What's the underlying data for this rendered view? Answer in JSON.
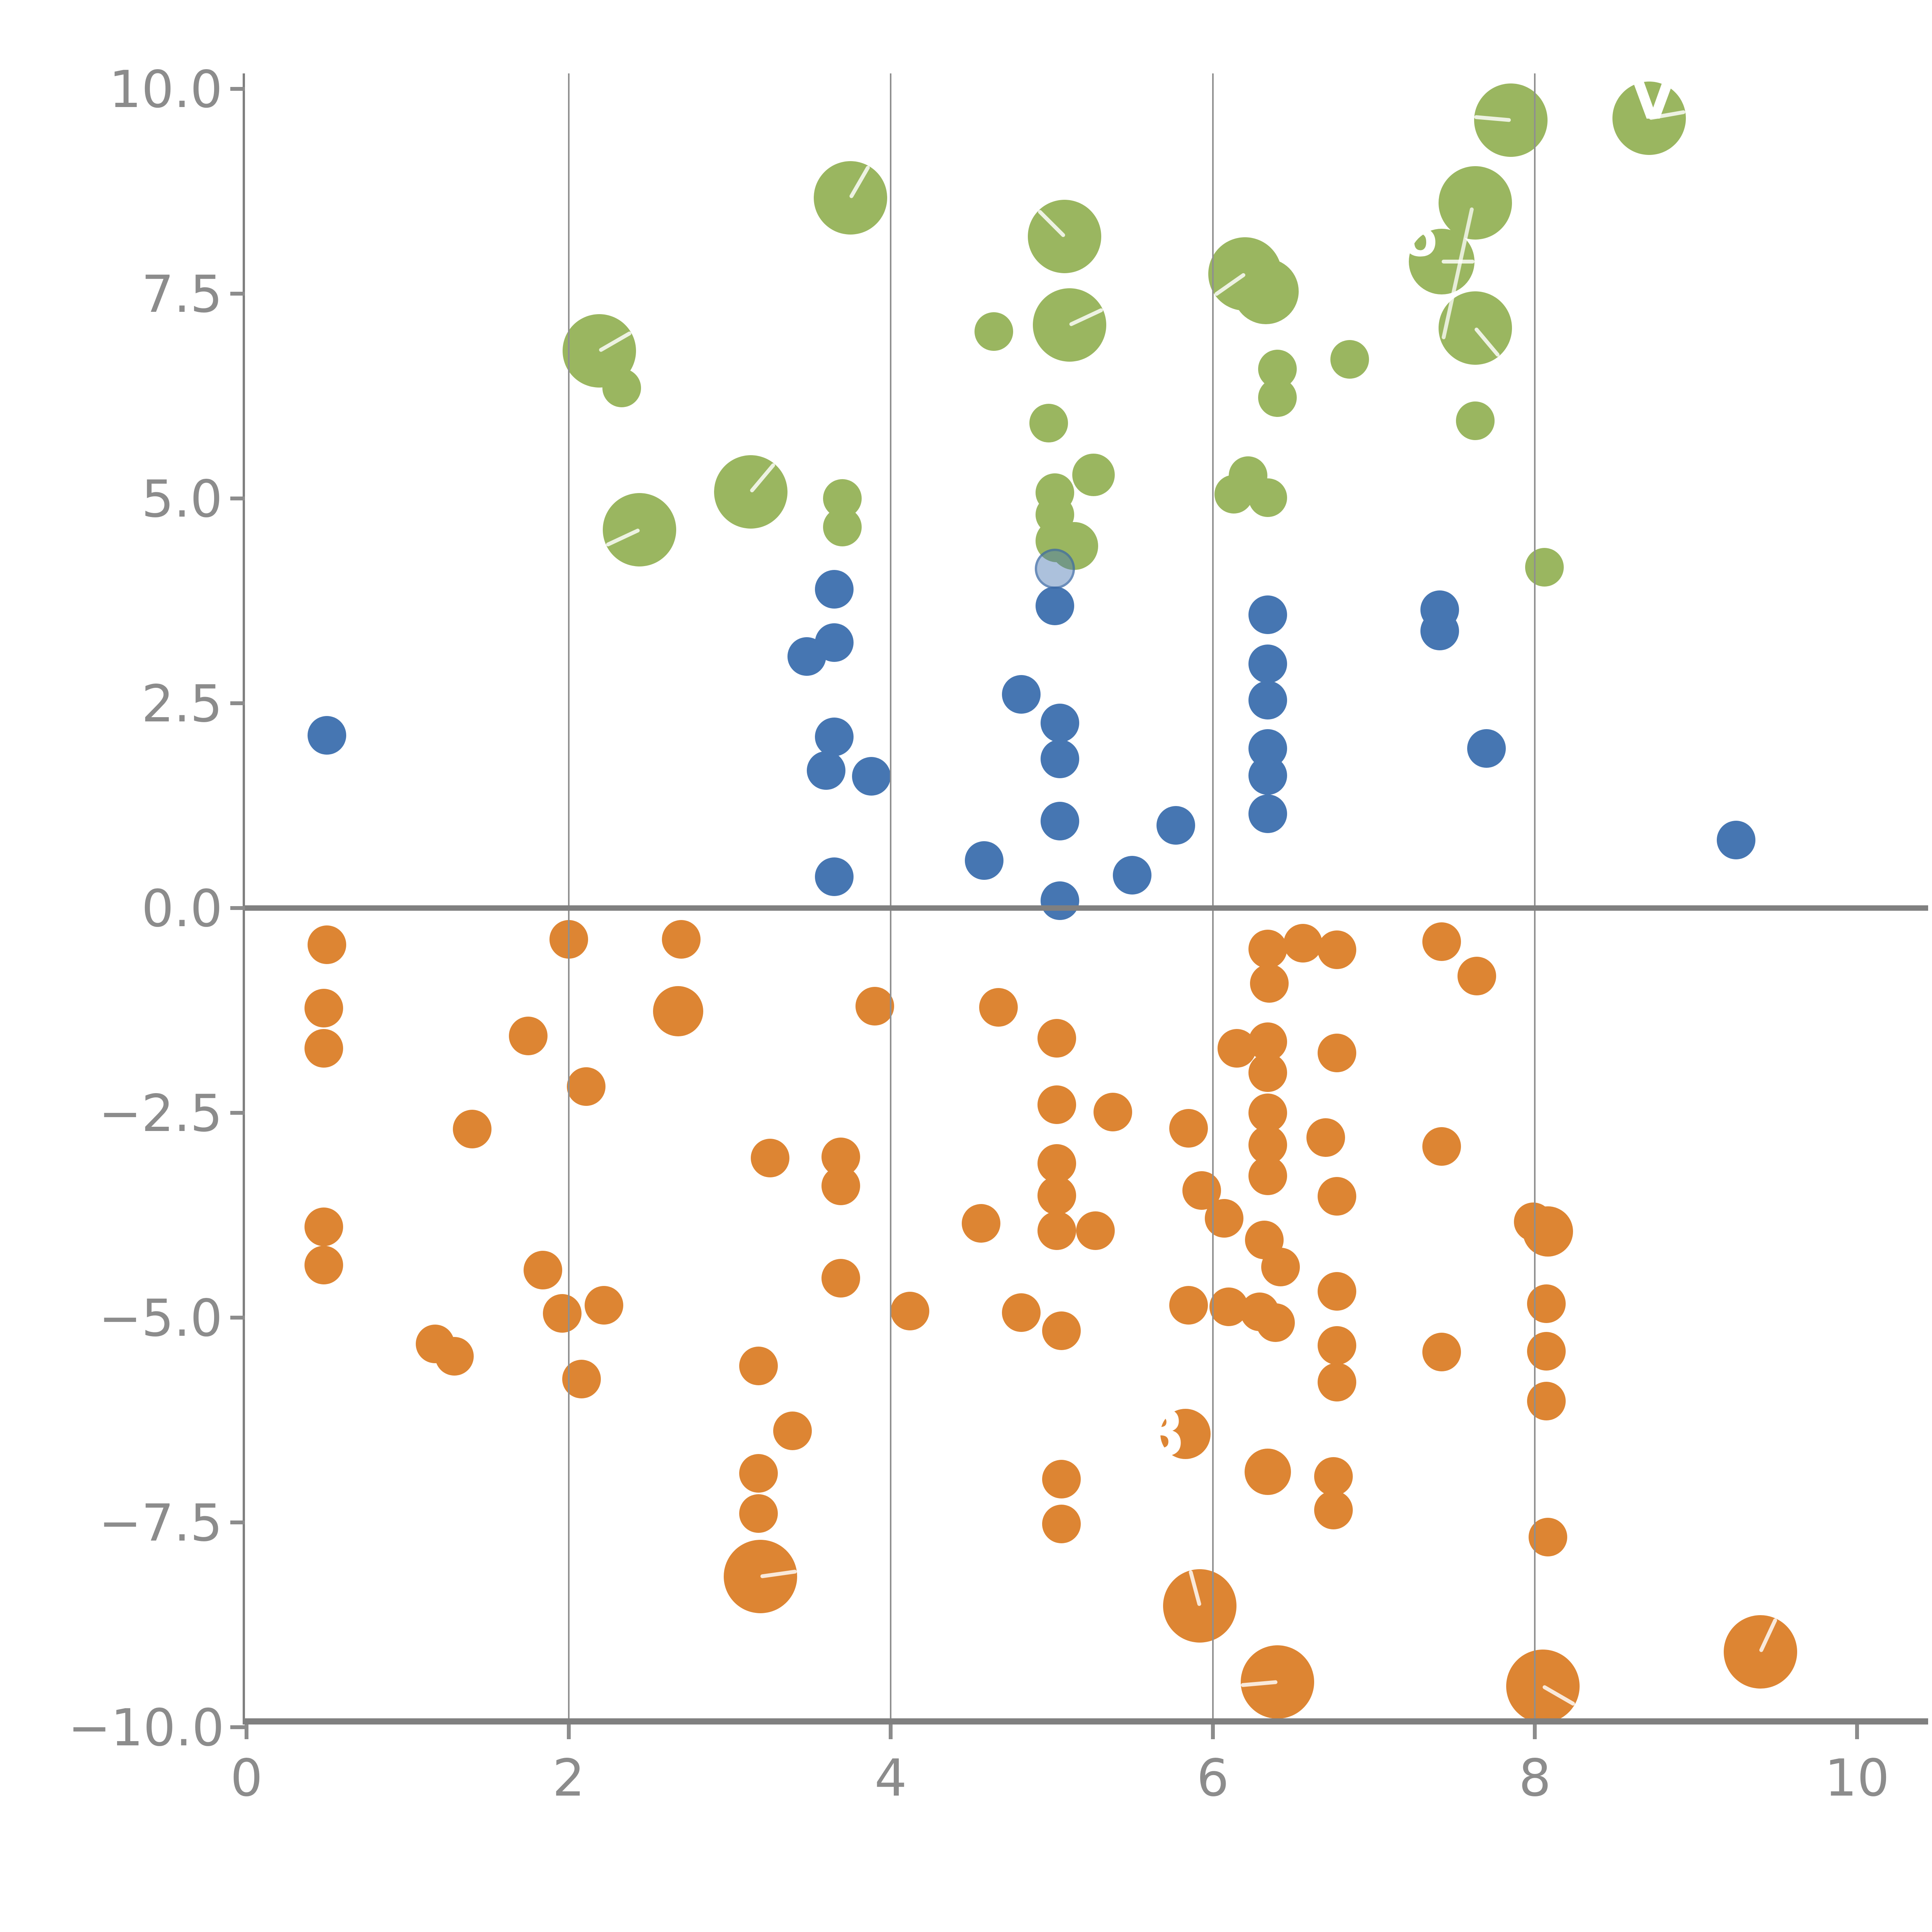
{
  "chart_data": {
    "type": "scatter",
    "title": "",
    "xlabel": "",
    "ylabel": "",
    "xlim": [
      0,
      10
    ],
    "ylim": [
      -10,
      10
    ],
    "grid": "vertical-only",
    "legend": "none",
    "x_ticks": {
      "values": [
        0,
        2,
        4,
        6,
        8,
        10
      ],
      "labels": [
        "0",
        "2",
        "4",
        "6",
        "8",
        "10"
      ]
    },
    "y_ticks": {
      "values": [
        10.0,
        7.5,
        5.0,
        2.5,
        0.0,
        -2.5,
        -5.0,
        -7.5,
        -10.0
      ],
      "labels": [
        "10.0",
        "7.5",
        "5.0",
        "2.5",
        "0.0",
        "−2.5",
        "−5.0",
        "−7.5",
        "−10.0"
      ]
    },
    "gridlines_x": [
      2,
      4,
      6,
      8
    ],
    "zero_line_y": 0.0,
    "colors": {
      "green": "#9ab660",
      "blue": "#4676b2",
      "blue_translucent_fill": "rgba(70,118,178,0.45)",
      "blue_translucent_stroke": "rgba(55,100,160,0.55)",
      "orange": "#dd8533",
      "axis": "#808080",
      "gridline": "#8f8f8f",
      "tick_label": "#8c8c8c",
      "needle": "rgba(255,255,255,0.82)"
    },
    "annotation_line": {
      "x1": 7.61,
      "y1": 8.55,
      "x2": 7.43,
      "y2": 6.94
    },
    "series": [
      {
        "name": "green",
        "color_key": "green",
        "points": [
          [
            2.19,
            6.8,
            95,
            30,
            null
          ],
          [
            2.33,
            6.35,
            50,
            null,
            null
          ],
          [
            2.44,
            4.62,
            95,
            205,
            null
          ],
          [
            3.13,
            5.08,
            95,
            50,
            null
          ],
          [
            3.75,
            8.67,
            95,
            60,
            null
          ],
          [
            3.7,
            5.0,
            50,
            null,
            null
          ],
          [
            3.7,
            4.65,
            50,
            null,
            null
          ],
          [
            4.64,
            7.04,
            50,
            null,
            null
          ],
          [
            5.08,
            8.2,
            95,
            135,
            null
          ],
          [
            5.11,
            7.12,
            95,
            25,
            null
          ],
          [
            4.98,
            5.92,
            50,
            null,
            null
          ],
          [
            5.02,
            5.07,
            50,
            null,
            null
          ],
          [
            5.02,
            4.8,
            50,
            null,
            null
          ],
          [
            5.03,
            4.48,
            55,
            null,
            null
          ],
          [
            5.14,
            4.42,
            62,
            null,
            null
          ],
          [
            5.26,
            5.29,
            55,
            null,
            null
          ],
          [
            6.2,
            7.74,
            95,
            215,
            null
          ],
          [
            6.33,
            7.53,
            85,
            null,
            null
          ],
          [
            6.4,
            6.58,
            50,
            null,
            null
          ],
          [
            6.4,
            6.23,
            50,
            null,
            null
          ],
          [
            6.85,
            6.7,
            50,
            null,
            null
          ],
          [
            6.13,
            5.05,
            50,
            null,
            null
          ],
          [
            6.22,
            5.28,
            50,
            null,
            null
          ],
          [
            6.34,
            5.01,
            50,
            null,
            null
          ],
          [
            7.63,
            8.61,
            95,
            null,
            null
          ],
          [
            7.42,
            7.89,
            85,
            0,
            {
              "t": "o",
              "dx": -55,
              "dy": -60,
              "fs": 130
            }
          ],
          [
            7.63,
            7.08,
            95,
            -50,
            null
          ],
          [
            7.63,
            5.95,
            50,
            null,
            null
          ],
          [
            7.85,
            9.62,
            95,
            175,
            null
          ],
          [
            8.71,
            9.64,
            95,
            10,
            {
              "t": "V",
              "dx": 10,
              "dy": -50,
              "fs": 150
            }
          ],
          [
            8.06,
            4.16,
            50,
            null,
            null
          ]
        ]
      },
      {
        "name": "blue",
        "color_key": "blue",
        "points": [
          [
            0.5,
            2.11,
            50,
            null,
            null
          ],
          [
            3.48,
            3.07,
            50,
            null,
            null
          ],
          [
            3.65,
            3.24,
            50,
            null,
            null
          ],
          [
            3.65,
            3.89,
            50,
            null,
            null
          ],
          [
            3.65,
            2.09,
            50,
            null,
            null
          ],
          [
            3.6,
            1.68,
            50,
            null,
            null
          ],
          [
            3.88,
            1.61,
            50,
            null,
            null
          ],
          [
            3.65,
            0.38,
            50,
            null,
            null
          ],
          [
            4.58,
            0.58,
            50,
            null,
            null
          ],
          [
            4.81,
            2.61,
            50,
            null,
            null
          ],
          [
            5.05,
            2.26,
            50,
            null,
            null
          ],
          [
            5.05,
            1.82,
            50,
            null,
            null
          ],
          [
            5.05,
            1.06,
            50,
            null,
            null
          ],
          [
            5.05,
            0.09,
            50,
            null,
            null
          ],
          [
            5.02,
            3.69,
            50,
            null,
            null
          ],
          [
            5.5,
            0.4,
            50,
            null,
            null
          ],
          [
            5.77,
            1.01,
            50,
            null,
            null
          ],
          [
            6.34,
            3.58,
            50,
            null,
            null
          ],
          [
            6.34,
            2.98,
            50,
            null,
            null
          ],
          [
            6.34,
            2.54,
            50,
            null,
            null
          ],
          [
            6.34,
            1.95,
            50,
            null,
            null
          ],
          [
            6.34,
            1.62,
            50,
            null,
            null
          ],
          [
            6.34,
            1.15,
            50,
            null,
            null
          ],
          [
            7.41,
            3.64,
            50,
            null,
            null
          ],
          [
            7.41,
            3.38,
            50,
            null,
            null
          ],
          [
            7.7,
            1.95,
            50,
            null,
            null
          ],
          [
            9.25,
            0.83,
            50,
            null,
            null
          ]
        ],
        "translucent_point": {
          "x": 5.02,
          "y": 4.14,
          "r": 52
        }
      },
      {
        "name": "orange",
        "color_key": "orange",
        "points": [
          [
            0.5,
            -0.45,
            50,
            null,
            null
          ],
          [
            0.48,
            -1.22,
            50,
            null,
            null
          ],
          [
            0.48,
            -1.71,
            50,
            null,
            null
          ],
          [
            0.48,
            -3.89,
            50,
            null,
            null
          ],
          [
            0.48,
            -4.36,
            50,
            null,
            null
          ],
          [
            1.17,
            -5.32,
            50,
            null,
            null
          ],
          [
            1.29,
            -5.47,
            50,
            null,
            null
          ],
          [
            1.75,
            -1.56,
            50,
            null,
            null
          ],
          [
            1.4,
            -2.7,
            50,
            null,
            null
          ],
          [
            2.11,
            -2.18,
            50,
            null,
            null
          ],
          [
            1.84,
            -4.42,
            50,
            null,
            null
          ],
          [
            1.96,
            -4.95,
            50,
            null,
            null
          ],
          [
            2.22,
            -4.85,
            50,
            null,
            null
          ],
          [
            2.08,
            -5.75,
            50,
            null,
            null
          ],
          [
            2.0,
            -0.38,
            50,
            null,
            null
          ],
          [
            2.7,
            -0.38,
            50,
            null,
            null
          ],
          [
            2.68,
            -1.26,
            65,
            null,
            null
          ],
          [
            3.25,
            -3.05,
            50,
            null,
            null
          ],
          [
            3.18,
            -5.59,
            50,
            null,
            null
          ],
          [
            3.39,
            -6.38,
            50,
            null,
            null
          ],
          [
            3.18,
            -6.9,
            50,
            null,
            null
          ],
          [
            3.18,
            -7.39,
            50,
            null,
            null
          ],
          [
            3.19,
            -8.16,
            95,
            8,
            null
          ],
          [
            3.69,
            -3.04,
            50,
            null,
            null
          ],
          [
            3.69,
            -3.39,
            50,
            null,
            null
          ],
          [
            3.69,
            -4.52,
            50,
            null,
            null
          ],
          [
            3.9,
            -1.2,
            50,
            null,
            null
          ],
          [
            4.12,
            -4.92,
            50,
            null,
            null
          ],
          [
            4.67,
            -1.21,
            50,
            null,
            null
          ],
          [
            4.56,
            -3.85,
            50,
            null,
            null
          ],
          [
            4.81,
            -4.94,
            50,
            null,
            null
          ],
          [
            5.06,
            -5.16,
            50,
            null,
            null
          ],
          [
            5.03,
            -1.59,
            50,
            null,
            null
          ],
          [
            5.03,
            -2.4,
            50,
            null,
            null
          ],
          [
            5.38,
            -2.49,
            50,
            null,
            null
          ],
          [
            5.03,
            -3.12,
            50,
            null,
            null
          ],
          [
            5.03,
            -3.51,
            50,
            null,
            null
          ],
          [
            5.03,
            -3.94,
            50,
            null,
            null
          ],
          [
            5.27,
            -3.94,
            50,
            null,
            null
          ],
          [
            5.06,
            -6.97,
            50,
            null,
            null
          ],
          [
            5.06,
            -7.52,
            50,
            null,
            null
          ],
          [
            5.83,
            -6.42,
            65,
            null,
            {
              "t": "B",
              "dx": -65,
              "dy": 0,
              "fs": 170
            }
          ],
          [
            5.85,
            -2.69,
            50,
            null,
            null
          ],
          [
            5.93,
            -3.45,
            50,
            null,
            null
          ],
          [
            6.07,
            -3.79,
            50,
            null,
            null
          ],
          [
            5.92,
            -8.52,
            95,
            105,
            null
          ],
          [
            6.34,
            -0.5,
            50,
            null,
            null
          ],
          [
            6.35,
            -0.92,
            50,
            null,
            null
          ],
          [
            6.34,
            -1.63,
            50,
            null,
            null
          ],
          [
            6.34,
            -2.01,
            50,
            null,
            null
          ],
          [
            6.34,
            -2.5,
            50,
            null,
            null
          ],
          [
            6.34,
            -2.89,
            50,
            null,
            null
          ],
          [
            6.34,
            -3.27,
            50,
            null,
            null
          ],
          [
            6.32,
            -4.05,
            50,
            null,
            null
          ],
          [
            6.42,
            -4.38,
            50,
            null,
            null
          ],
          [
            6.29,
            -4.93,
            50,
            null,
            null
          ],
          [
            6.39,
            -5.06,
            50,
            null,
            null
          ],
          [
            6.1,
            -4.87,
            50,
            null,
            null
          ],
          [
            5.85,
            -4.85,
            50,
            null,
            null
          ],
          [
            6.15,
            -1.71,
            50,
            null,
            null
          ],
          [
            6.7,
            -2.8,
            50,
            null,
            null
          ],
          [
            6.77,
            -0.51,
            50,
            null,
            null
          ],
          [
            6.56,
            -0.43,
            50,
            null,
            null
          ],
          [
            6.77,
            -1.77,
            50,
            null,
            null
          ],
          [
            6.77,
            -3.52,
            50,
            null,
            null
          ],
          [
            6.77,
            -4.68,
            50,
            null,
            null
          ],
          [
            6.77,
            -5.34,
            50,
            null,
            null
          ],
          [
            6.77,
            -5.79,
            50,
            null,
            null
          ],
          [
            7.42,
            -0.41,
            50,
            null,
            null
          ],
          [
            7.64,
            -0.83,
            50,
            null,
            null
          ],
          [
            7.42,
            -2.91,
            50,
            null,
            null
          ],
          [
            7.42,
            -5.42,
            50,
            null,
            null
          ],
          [
            7.99,
            -3.83,
            50,
            null,
            null
          ],
          [
            8.08,
            -3.95,
            65,
            null,
            null
          ],
          [
            8.07,
            -4.83,
            50,
            null,
            null
          ],
          [
            8.07,
            -5.41,
            50,
            null,
            null
          ],
          [
            8.07,
            -6.02,
            50,
            null,
            null
          ],
          [
            6.34,
            -6.88,
            60,
            null,
            null
          ],
          [
            6.75,
            -6.94,
            50,
            null,
            null
          ],
          [
            6.75,
            -7.35,
            50,
            null,
            null
          ],
          [
            8.08,
            -7.68,
            50,
            null,
            null
          ],
          [
            6.4,
            -9.45,
            95,
            185,
            null
          ],
          [
            8.05,
            -9.5,
            95,
            -30,
            null
          ],
          [
            9.4,
            -9.08,
            95,
            65,
            null
          ]
        ]
      }
    ]
  }
}
